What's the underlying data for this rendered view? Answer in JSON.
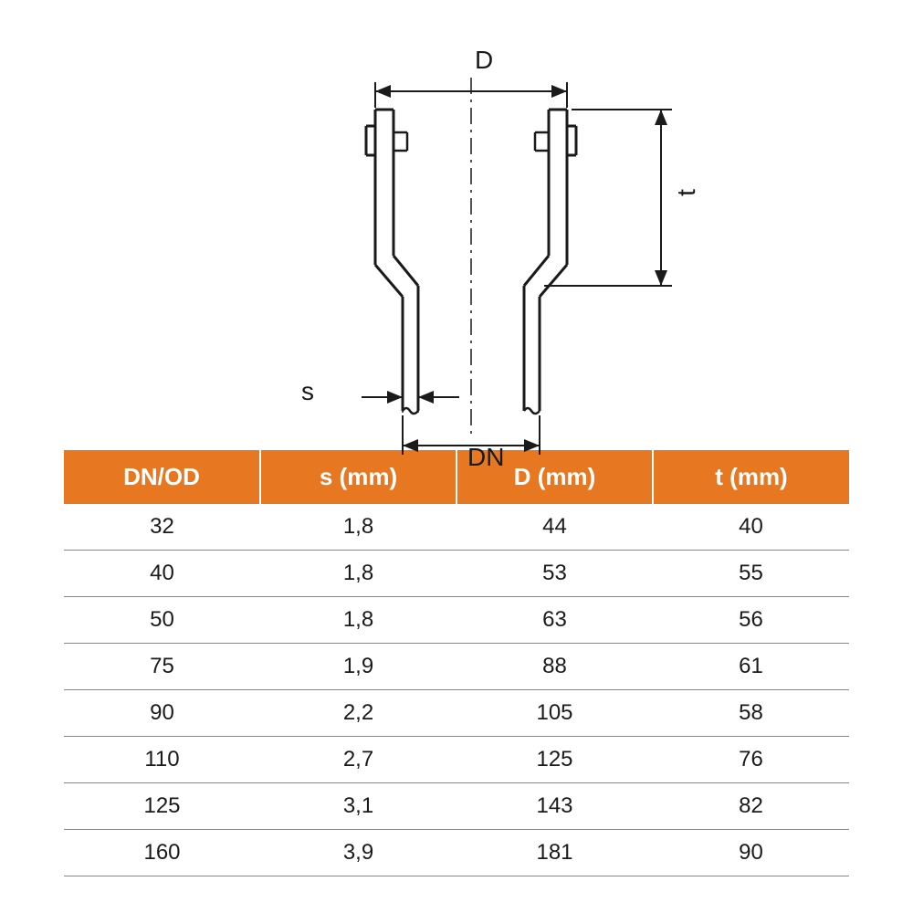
{
  "diagram": {
    "labels": {
      "D": "D",
      "t": "t",
      "s": "s",
      "DN": "DN"
    },
    "colors": {
      "stroke": "#1a1a1a",
      "background": "#ffffff",
      "header_bg": "#e87722",
      "header_text": "#ffffff",
      "cell_text": "#1a1a1a",
      "row_border": "#888888"
    },
    "stroke_width_main": 3,
    "stroke_width_dim": 2
  },
  "table": {
    "columns": [
      "DN/OD",
      "s (mm)",
      "D (mm)",
      "t (mm)"
    ],
    "rows": [
      [
        "32",
        "1,8",
        "44",
        "40"
      ],
      [
        "40",
        "1,8",
        "53",
        "55"
      ],
      [
        "50",
        "1,8",
        "63",
        "56"
      ],
      [
        "75",
        "1,9",
        "88",
        "61"
      ],
      [
        "90",
        "2,2",
        "105",
        "58"
      ],
      [
        "110",
        "2,7",
        "125",
        "76"
      ],
      [
        "125",
        "3,1",
        "143",
        "82"
      ],
      [
        "160",
        "3,9",
        "181",
        "90"
      ]
    ],
    "header_bg": "#e87722",
    "header_fontsize": 26,
    "cell_fontsize": 24
  }
}
